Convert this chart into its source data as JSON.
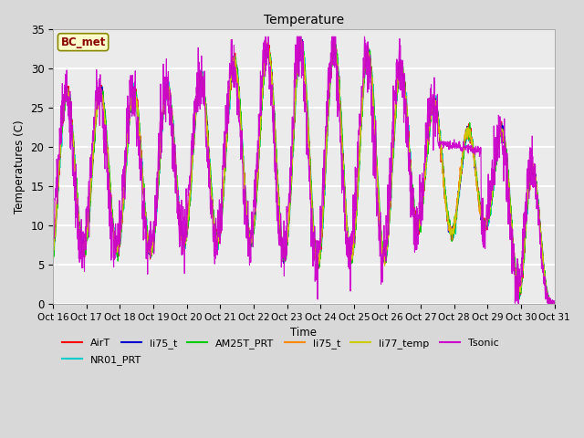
{
  "title": "Temperature",
  "xlabel": "Time",
  "ylabel": "Temperatures (C)",
  "ylim": [
    0,
    35
  ],
  "series": [
    {
      "name": "AirT",
      "color": "#FF0000"
    },
    {
      "name": "li75_t",
      "color": "#0000CC"
    },
    {
      "name": "AM25T_PRT",
      "color": "#00CC00"
    },
    {
      "name": "li75_t",
      "color": "#FF8800"
    },
    {
      "name": "li77_temp",
      "color": "#CCCC00"
    },
    {
      "name": "Tsonic",
      "color": "#CC00CC"
    },
    {
      "name": "NR01_PRT",
      "color": "#00CCCC"
    }
  ],
  "bg_color": "#D8D8D8",
  "plot_bg": "#EBEBEB",
  "grid_color": "#FFFFFF",
  "annotation_text": "BC_met",
  "annotation_color": "#8B0000",
  "annotation_bg": "#FFFFCC",
  "num_days": 15,
  "points_per_day": 144,
  "legend_ncol_row1": 6,
  "figsize": [
    6.4,
    4.8
  ],
  "dpi": 100
}
